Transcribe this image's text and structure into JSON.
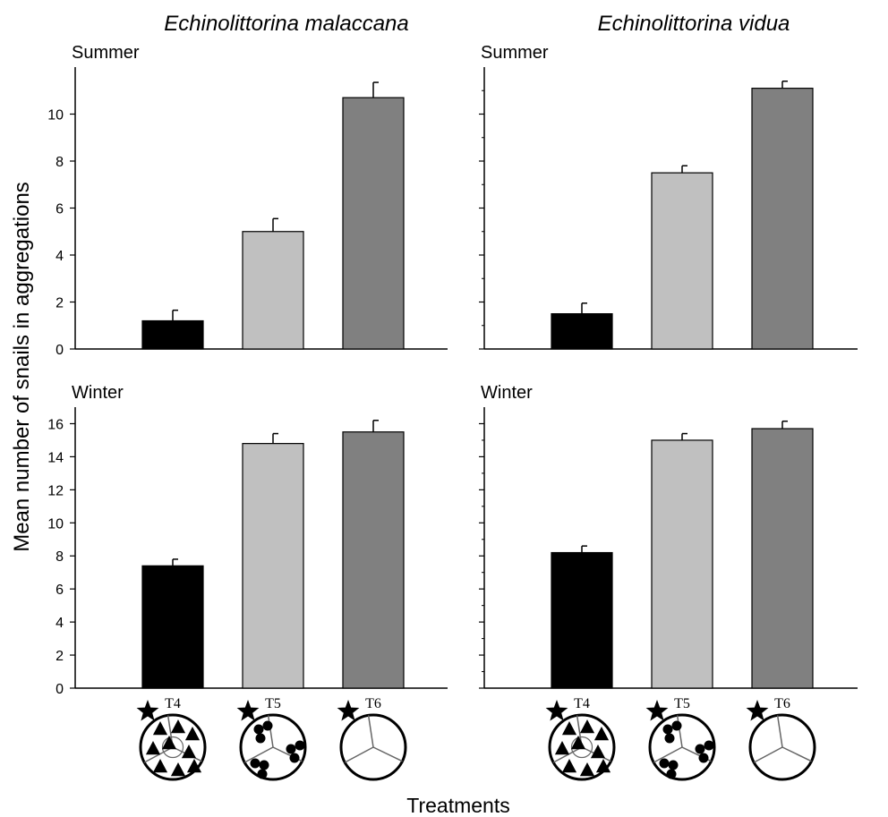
{
  "figure": {
    "ylabel": "Mean number of snails in aggregations",
    "xlabel": "Treatments",
    "columns": [
      {
        "title": "Echinolittorina malaccana"
      },
      {
        "title": "Echinolittorina vidua"
      }
    ]
  },
  "colors": {
    "T4": "#000000",
    "T5": "#c0c0c0",
    "T6": "#808080"
  },
  "icons": [
    "star-icon",
    "triangles-circle-icon",
    "dots-circle-icon",
    "empty-circle-icon"
  ],
  "chart_data": [
    {
      "type": "bar",
      "species": "Echinolittorina malaccana",
      "panel_label": "Summer",
      "categories": [
        "T4",
        "T5",
        "T6"
      ],
      "values": [
        1.2,
        5.0,
        10.7
      ],
      "errors": [
        0.45,
        0.55,
        0.65
      ],
      "ylim": [
        0,
        12
      ],
      "yticks": [
        0,
        2,
        4,
        6,
        8,
        10
      ]
    },
    {
      "type": "bar",
      "species": "Echinolittorina vidua",
      "panel_label": "Summer",
      "categories": [
        "T4",
        "T5",
        "T6"
      ],
      "values": [
        1.5,
        7.5,
        11.1
      ],
      "errors": [
        0.45,
        0.3,
        0.3
      ],
      "ylim": [
        0,
        12
      ],
      "yticks": [
        0,
        2,
        4,
        6,
        8,
        10
      ]
    },
    {
      "type": "bar",
      "species": "Echinolittorina malaccana",
      "panel_label": "Winter",
      "categories": [
        "T4",
        "T5",
        "T6"
      ],
      "values": [
        7.4,
        14.8,
        15.5
      ],
      "errors": [
        0.4,
        0.6,
        0.7
      ],
      "ylim": [
        0,
        17
      ],
      "yticks": [
        0,
        2,
        4,
        6,
        8,
        10,
        12,
        14,
        16
      ]
    },
    {
      "type": "bar",
      "species": "Echinolittorina vidua",
      "panel_label": "Winter",
      "categories": [
        "T4",
        "T5",
        "T6"
      ],
      "values": [
        8.2,
        15.0,
        15.7
      ],
      "errors": [
        0.4,
        0.4,
        0.45
      ],
      "ylim": [
        0,
        17
      ],
      "yticks": [
        0,
        2,
        4,
        6,
        8,
        10,
        12,
        14,
        16
      ]
    }
  ]
}
